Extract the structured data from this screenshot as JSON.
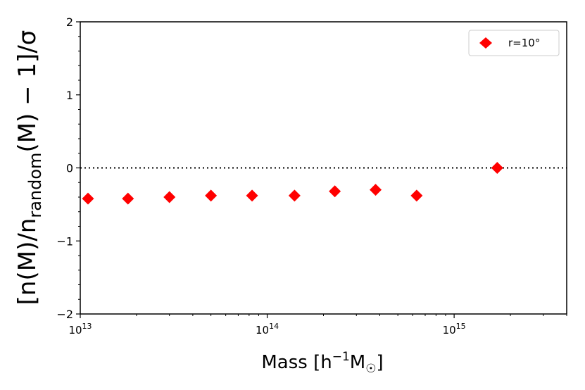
{
  "chart_data": {
    "type": "scatter",
    "xlabel": "Mass [h⁻¹M☉]",
    "ylabel": "[n(M)/n_random(M) − 1]/σ",
    "x_scale": "log",
    "xlim": [
      10000000000000.0,
      4000000000000000.0
    ],
    "ylim": [
      -2,
      2
    ],
    "y_ticks": [
      -2,
      -1,
      0,
      1,
      2
    ],
    "y_tick_labels": [
      "−2",
      "−1",
      "0",
      "1",
      "2"
    ],
    "x_ticks": [
      10000000000000.0,
      100000000000000.0,
      1000000000000000.0
    ],
    "x_tick_labels": [
      {
        "base": "10",
        "exp": "13"
      },
      {
        "base": "10",
        "exp": "14"
      },
      {
        "base": "10",
        "exp": "15"
      }
    ],
    "reference_line": {
      "y": 0,
      "style": "dotted",
      "color": "#000000"
    },
    "grid": false,
    "legend_position": "top-right",
    "series": [
      {
        "name": "r=10°",
        "color": "#ff0000",
        "marker": "diamond",
        "x": [
          11000000000000.0,
          18000000000000.0,
          30000000000000.0,
          50000000000000.0,
          83000000000000.0,
          140000000000000.0,
          230000000000000.0,
          380000000000000.0,
          630000000000000.0,
          1700000000000000.0
        ],
        "y": [
          -0.42,
          -0.42,
          -0.4,
          -0.38,
          -0.38,
          -0.38,
          -0.32,
          -0.3,
          -0.38,
          0.0
        ]
      }
    ]
  }
}
